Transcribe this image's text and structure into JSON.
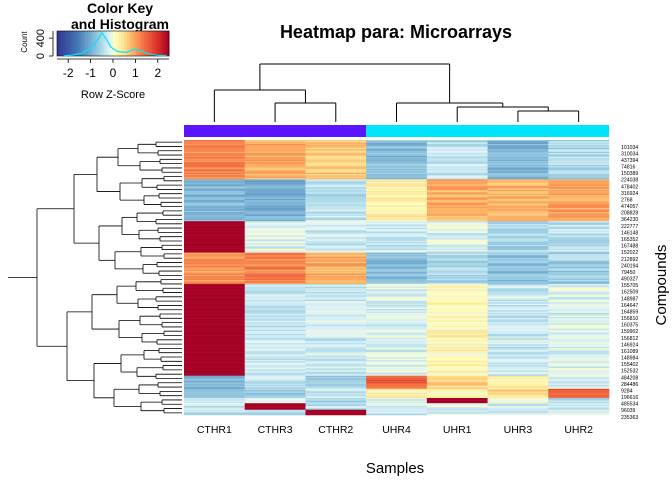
{
  "chart_data": {
    "type": "heatmap",
    "title": "Heatmap para: Microarrays",
    "xlabel": "Samples",
    "ylabel": "Compounds",
    "columns": [
      "CTHR1",
      "CTHR3",
      "CTHR2",
      "UHR4",
      "UHR1",
      "UHR3",
      "UHR2"
    ],
    "groups": [
      {
        "color": "#5a14ff",
        "samples": [
          "CTHR1",
          "CTHR3",
          "CTHR2"
        ]
      },
      {
        "color": "#00e5ff",
        "samples": [
          "UHR4",
          "UHR1",
          "UHR3",
          "UHR2"
        ]
      }
    ],
    "row_labels": [
      "101034",
      "310034",
      "437394",
      "74816",
      "150389",
      "224038",
      "478402",
      "316924",
      "2768",
      "474057",
      "208828",
      "364230",
      "222777",
      "146148",
      "165352",
      "167488",
      "152022",
      "212892",
      "240194",
      "79450",
      "490327",
      "155705",
      "162509",
      "148987",
      "164647",
      "164859",
      "156810",
      "160375",
      "159902",
      "156812",
      "146924",
      "161089",
      "148984",
      "155402",
      "152532",
      "484208",
      "284486",
      "9284",
      "196616",
      "485534",
      "96039",
      "235363"
    ],
    "row_blocks": [
      {
        "rows": 30,
        "values": [
          1.2,
          0.9,
          0.7,
          -0.8,
          -0.4,
          -0.9,
          -0.5
        ]
      },
      {
        "rows": 32,
        "values": [
          -0.9,
          -1.0,
          -0.4,
          0.3,
          0.9,
          0.8,
          1.0
        ]
      },
      {
        "rows": 24,
        "values": [
          2.5,
          -0.2,
          -0.3,
          -0.3,
          -0.2,
          -0.5,
          -0.4
        ]
      },
      {
        "rows": 24,
        "values": [
          1.1,
          1.2,
          0.9,
          -0.8,
          -0.5,
          -0.8,
          -0.6
        ]
      },
      {
        "rows": 70,
        "values": [
          2.5,
          -0.3,
          -0.3,
          -0.2,
          0.2,
          -0.3,
          -0.2
        ]
      },
      {
        "rows": 10,
        "values": [
          -0.9,
          -0.4,
          -0.6,
          1.5,
          0.6,
          0.3,
          -0.2
        ]
      },
      {
        "rows": 7,
        "values": [
          -0.9,
          -0.6,
          -0.3,
          0.2,
          0.3,
          0.6,
          1.5
        ]
      },
      {
        "rows": 4,
        "values": [
          -0.3,
          -0.3,
          -0.5,
          -0.2,
          2.5,
          0.1,
          -0.4
        ]
      },
      {
        "rows": 5,
        "values": [
          -0.3,
          2.5,
          -0.4,
          -0.2,
          -0.2,
          -0.3,
          -0.3
        ]
      },
      {
        "rows": 4,
        "values": [
          -0.4,
          -0.4,
          2.5,
          -0.3,
          -0.3,
          -0.2,
          -0.2
        ]
      }
    ],
    "color_scale": {
      "low": "#313695",
      "mid": "#ffffbf",
      "high": "#a50026",
      "range": [
        -2.5,
        2.5
      ]
    },
    "color_key": {
      "title": "Color Key\nand Histogram",
      "xlabel": "Row Z-Score",
      "ylabel": "Count",
      "x_ticks": [
        "-2",
        "-1",
        "0",
        "1",
        "2"
      ],
      "y_ticks": [
        "0",
        "400"
      ],
      "x_range": [
        -2.5,
        2.5
      ],
      "y_range": [
        0,
        560
      ],
      "histogram": [
        {
          "z": -2.2,
          "count": 5
        },
        {
          "z": -1.8,
          "count": 20
        },
        {
          "z": -1.4,
          "count": 60
        },
        {
          "z": -1.0,
          "count": 180
        },
        {
          "z": -0.7,
          "count": 350
        },
        {
          "z": -0.5,
          "count": 520
        },
        {
          "z": -0.3,
          "count": 380
        },
        {
          "z": -0.1,
          "count": 200
        },
        {
          "z": 0.2,
          "count": 100
        },
        {
          "z": 0.6,
          "count": 80
        },
        {
          "z": 0.9,
          "count": 150
        },
        {
          "z": 1.2,
          "count": 120
        },
        {
          "z": 1.6,
          "count": 50
        },
        {
          "z": 2.0,
          "count": 15
        },
        {
          "z": 2.4,
          "count": 5
        }
      ]
    }
  }
}
